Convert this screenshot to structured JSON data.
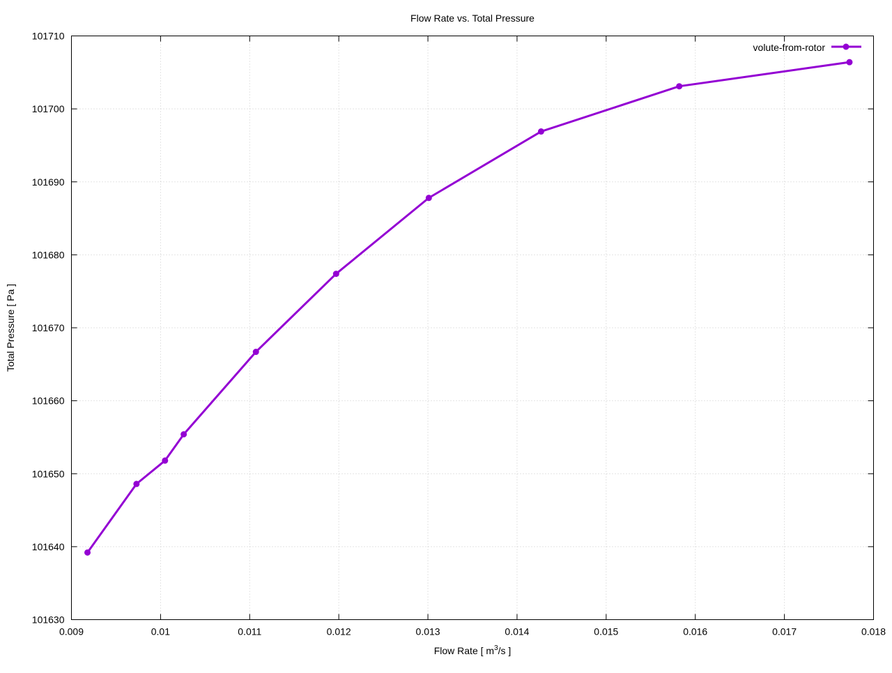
{
  "chart_data": {
    "type": "line",
    "title": "Flow Rate vs. Total Pressure",
    "xlabel_main": "Flow Rate [ m",
    "xlabel_sup": "3",
    "xlabel_tail": "/s ]",
    "ylabel": "Total Pressure [ Pa ]",
    "xlim": [
      0.009,
      0.018
    ],
    "ylim": [
      101630,
      101710
    ],
    "xticks": [
      "0.009",
      "0.01",
      "0.011",
      "0.012",
      "0.013",
      "0.014",
      "0.015",
      "0.016",
      "0.017",
      "0.018"
    ],
    "yticks": [
      "101630",
      "101640",
      "101650",
      "101660",
      "101670",
      "101680",
      "101690",
      "101700",
      "101710"
    ],
    "grid": true,
    "legend_position": "top-right",
    "series": [
      {
        "name": "volute-from-rotor",
        "color": "#9400d3",
        "x": [
          0.00918,
          0.00973,
          0.01005,
          0.01026,
          0.01107,
          0.01197,
          0.01301,
          0.01427,
          0.01582,
          0.01773
        ],
        "y": [
          101639.2,
          101648.6,
          101651.8,
          101655.4,
          101666.7,
          101677.4,
          101687.8,
          101696.9,
          101703.1,
          101706.4
        ]
      }
    ]
  }
}
